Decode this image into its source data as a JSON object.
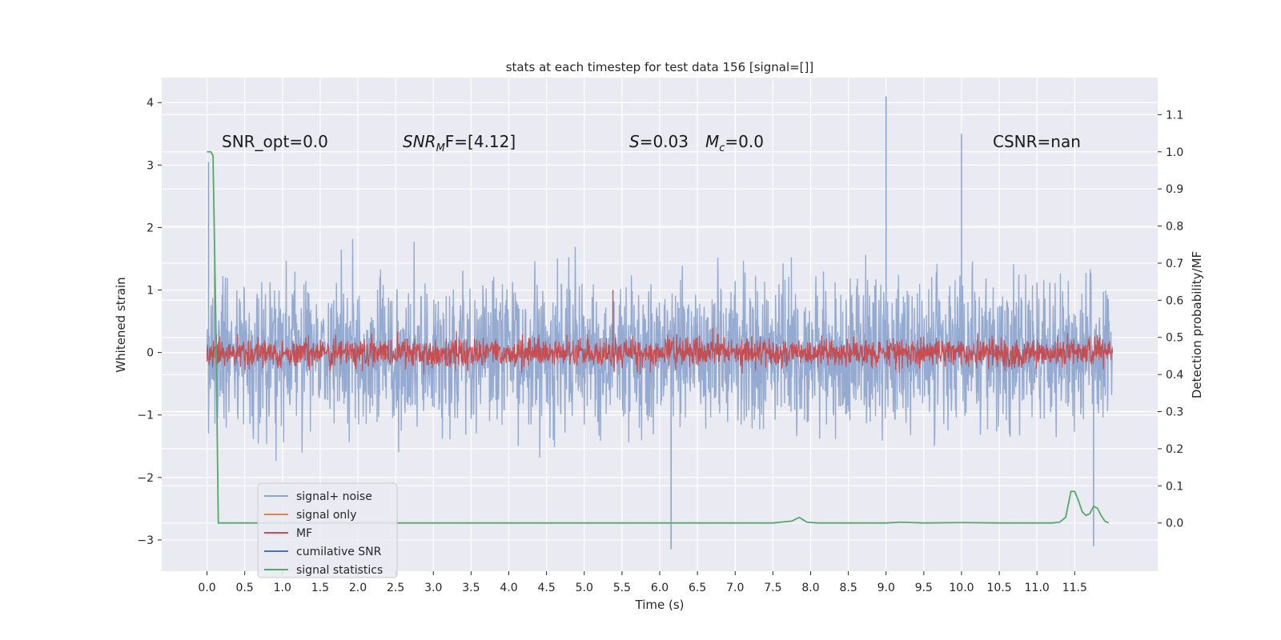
{
  "chart_data": {
    "type": "line",
    "title": "stats at each timestep for test data 156 [signal=[]]",
    "xlabel": "Time (s)",
    "ylabel": "Whitened strain",
    "ylabel_right": "Detection probability/MF",
    "xlim": [
      -0.6,
      12.6
    ],
    "ylim": [
      -3.5,
      4.4
    ],
    "ylim_right": [
      -0.13,
      1.2
    ],
    "xticks": [
      0.0,
      0.5,
      1.0,
      1.5,
      2.0,
      2.5,
      3.0,
      3.5,
      4.0,
      4.5,
      5.0,
      5.5,
      6.0,
      6.5,
      7.0,
      7.5,
      8.0,
      8.5,
      9.0,
      9.5,
      10.0,
      10.5,
      11.0,
      11.5
    ],
    "xtick_labels": [
      "0.0",
      "0.5",
      "1.0",
      "1.5",
      "2.0",
      "2.5",
      "3.0",
      "3.5",
      "4.0",
      "4.5",
      "5.0",
      "5.5",
      "6.0",
      "6.5",
      "7.0",
      "7.5",
      "8.0",
      "8.5",
      "9.0",
      "9.5",
      "10.0",
      "10.5",
      "11.0",
      "11.5"
    ],
    "yticks": [
      -3,
      -2,
      -1,
      0,
      1,
      2,
      3,
      4
    ],
    "ytick_labels": [
      "−3",
      "−2",
      "−1",
      "0",
      "1",
      "2",
      "3",
      "4"
    ],
    "yticks_right": [
      0.0,
      0.1,
      0.2,
      0.3,
      0.4,
      0.5,
      0.6,
      0.7,
      0.8,
      0.9,
      1.0,
      1.1
    ],
    "ytick_labels_right": [
      "0.0",
      "0.1",
      "0.2",
      "0.3",
      "0.4",
      "0.5",
      "0.6",
      "0.7",
      "0.8",
      "0.9",
      "1.0",
      "1.1"
    ],
    "grid": true,
    "legend_placement": "lower-left",
    "annotations": {
      "snr_opt": "SNR_opt=0.0",
      "snr_mf_main": "SNR",
      "snr_mf_sub": "M",
      "snr_mf_rest": "F=[4.12]",
      "s_main": "S",
      "s_rest": "=0.03",
      "mc_main": "M",
      "mc_sub": "c",
      "mc_rest": "=0.0",
      "csnr": "CSNR=nan"
    },
    "series": [
      {
        "name": "signal+ noise",
        "color": "#8fa6cf",
        "axis": "left",
        "noise": {
          "x_start": 0.0,
          "x_end": 12.0,
          "mean": 0.0,
          "std": 0.6,
          "max": 4.1,
          "min": -3.15
        }
      },
      {
        "name": "signal only",
        "color": "#dd8452",
        "axis": "left",
        "values": []
      },
      {
        "name": "MF",
        "color": "#c44e52",
        "axis": "left",
        "noise": {
          "x_start": 0.0,
          "x_end": 12.0,
          "mean": 0.0,
          "std": 0.12,
          "max": 1.0,
          "min": -0.4
        }
      },
      {
        "name": "cumilative SNR",
        "color": "#4c72b0",
        "axis": "right",
        "values": []
      },
      {
        "name": "signal statistics",
        "color": "#55a868",
        "axis": "right",
        "x": [
          0.0,
          0.05,
          0.08,
          0.12,
          0.15,
          0.25,
          0.4,
          1.0,
          2.0,
          3.0,
          4.0,
          5.0,
          5.5,
          6.0,
          6.5,
          7.0,
          7.5,
          7.75,
          7.85,
          7.95,
          8.1,
          8.5,
          9.0,
          9.2,
          9.5,
          10.0,
          10.5,
          11.0,
          11.2,
          11.3,
          11.38,
          11.45,
          11.5,
          11.55,
          11.6,
          11.65,
          11.7,
          11.75,
          11.8,
          11.85,
          11.9,
          11.95
        ],
        "y": [
          1.0,
          1.0,
          0.99,
          0.5,
          0.0,
          0.0,
          0.0,
          0.0,
          0.0,
          0.0,
          0.0,
          0.0,
          0.0,
          0.0,
          0.0,
          0.0,
          0.0,
          0.005,
          0.015,
          0.002,
          0.0,
          0.0,
          0.0,
          0.002,
          0.0,
          0.001,
          0.0,
          0.0,
          0.0,
          0.002,
          0.015,
          0.085,
          0.085,
          0.06,
          0.03,
          0.02,
          0.025,
          0.045,
          0.04,
          0.02,
          0.005,
          0.0
        ]
      }
    ]
  }
}
